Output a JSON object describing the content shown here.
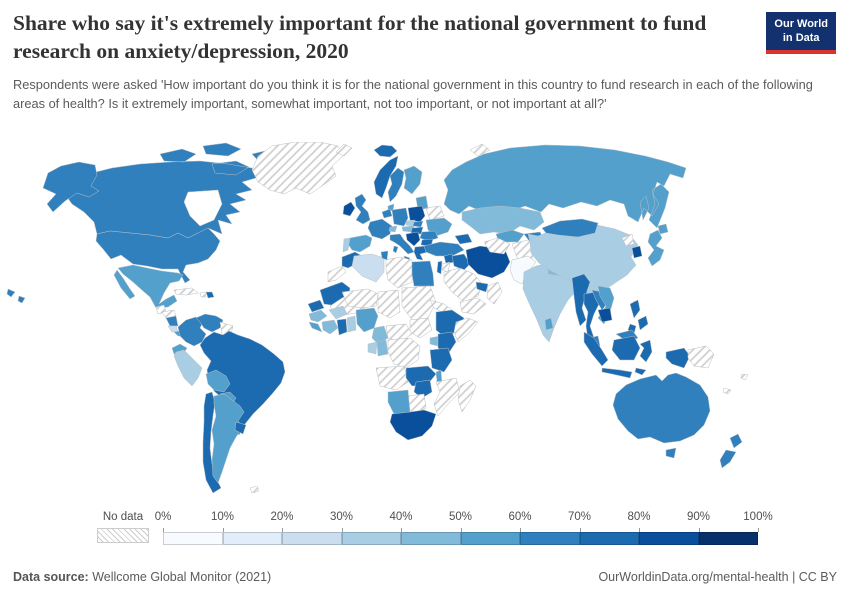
{
  "header": {
    "title": "Share who say it's extremely important for the national government to fund research on anxiety/depression, 2020",
    "subtitle": "Respondents were asked 'How important do you think it is for the national government in this country to fund research in each of the following areas of health? Is it extremely important, somewhat important, not too important, or not important at all?'",
    "logo": {
      "line1": "Our World",
      "line2": "in Data",
      "bg": "#12316e",
      "accent": "#d8352e"
    }
  },
  "legend": {
    "no_data_label": "No data",
    "tick_labels": [
      "0%",
      "10%",
      "20%",
      "30%",
      "40%",
      "50%",
      "60%",
      "70%",
      "80%",
      "90%",
      "100%"
    ],
    "palette": [
      "#f7fbff",
      "#e1edf8",
      "#cadef0",
      "#a9cee4",
      "#82bad9",
      "#54a0cd",
      "#3080bd",
      "#1c6bb0",
      "#0a4f9b",
      "#08306b"
    ]
  },
  "map": {
    "sea_color": "#ffffff",
    "border_color": "#b9bfc4",
    "no_data_fill": "hatch"
  },
  "footer": {
    "source_label": "Data source:",
    "source_value": " Wellcome Global Monitor (2021)",
    "right_text": "OurWorldinData.org/mental-health | CC BY"
  },
  "chart_data": {
    "type": "choropleth",
    "title": "Share who say it's extremely important for the national government to fund research on anxiety/depression",
    "year": 2020,
    "unit": "share answering 'extremely important' (%)",
    "legend_bins": [
      "0-10%",
      "10-20%",
      "20-30%",
      "30-40%",
      "40-50%",
      "50-60%",
      "60-70%",
      "70-80%",
      "80-90%",
      "90-100%"
    ],
    "bin_meaning": "bin index i means value between i*10% and (i+1)*10%; 'nd' means no data (hatched)",
    "countries": {
      "canada": 6,
      "united-states": 6,
      "greenland": "nd",
      "mexico": 5,
      "guatemala": "nd",
      "honduras": "nd",
      "nicaragua": 6,
      "costa-rica": 2,
      "panama": 5,
      "cuba": "nd",
      "haiti": "nd",
      "dominican-republic": 7,
      "colombia": 6,
      "venezuela": 6,
      "guyanas": "nd",
      "ecuador": 5,
      "peru": 3,
      "brazil": 7,
      "bolivia": 5,
      "paraguay": 5,
      "chile": 7,
      "argentina": 5,
      "uruguay": 7,
      "falkland-islands": "nd",
      "iceland": 7,
      "ireland": 8,
      "united-kingdom": 6,
      "portugal": 3,
      "spain": 5,
      "france": 6,
      "netherlands-belgium": 6,
      "germany": 6,
      "denmark": 5,
      "norway": 7,
      "sweden": 6,
      "finland": 5,
      "baltics": 5,
      "belarus": "nd",
      "poland": 8,
      "czechia": 3,
      "slovakia": 6,
      "austria": 4,
      "switzerland": 4,
      "hungary": 7,
      "ukraine": 5,
      "romania": 6,
      "balkans": 8,
      "bulgaria": 7,
      "greece": 7,
      "italy": 6,
      "russia": 5,
      "svalbard": "nd",
      "novaya-zemlya": "nd",
      "morocco": 7,
      "western-sahara": "nd",
      "algeria": 2,
      "tunisia": 6,
      "libya": "nd",
      "egypt": 6,
      "mauritania": 7,
      "mali": "nd",
      "senegal": 7,
      "guinea": 4,
      "sierra-leone-liberia": 5,
      "ivory-coast": 4,
      "ghana": 7,
      "togo-benin": 3,
      "burkina-faso": 3,
      "niger": "nd",
      "nigeria": 5,
      "chad": "nd",
      "sudan": "nd",
      "eritrea-djibouti": "nd",
      "ethiopia": 7,
      "somalia": "nd",
      "south-sudan": "nd",
      "central-african-republic": "nd",
      "cameroon": 4,
      "gabon": 3,
      "congo": 4,
      "dr-congo": "nd",
      "uganda": 4,
      "kenya": 7,
      "tanzania": 7,
      "angola": "nd",
      "zambia": 7,
      "malawi": 5,
      "mozambique": "nd",
      "zimbabwe": 7,
      "botswana": "nd",
      "namibia": 5,
      "south-africa": 8,
      "madagascar": "nd",
      "turkey": 6,
      "syria": 7,
      "israel": 7,
      "jordan": "nd",
      "iraq": 7,
      "iran": 8,
      "saudi-arabia": "nd",
      "yemen": "nd",
      "oman": "nd",
      "united-arab-emirates": 7,
      "caucasus": 7,
      "kazakhstan": 4,
      "uzbekistan": 5,
      "turkmenistan": "nd",
      "kyrgyzstan": 6,
      "afghanistan": "nd",
      "pakistan": 0,
      "india": 3,
      "nepal": 4,
      "bangladesh": 7,
      "sri-lanka": 5,
      "china": 3,
      "mongolia": 6,
      "north-korea": "nd",
      "south-korea": 8,
      "japan": 5,
      "taiwan": 5,
      "myanmar": 7,
      "thailand": 7,
      "laos": 6,
      "vietnam": 5,
      "cambodia": 8,
      "philippines": 7,
      "malaysia": 6,
      "indonesia": 7,
      "papua-new-guinea": "nd",
      "fiji": "nd",
      "new-caledonia": "nd",
      "australia": 6,
      "new-zealand": 6
    }
  }
}
